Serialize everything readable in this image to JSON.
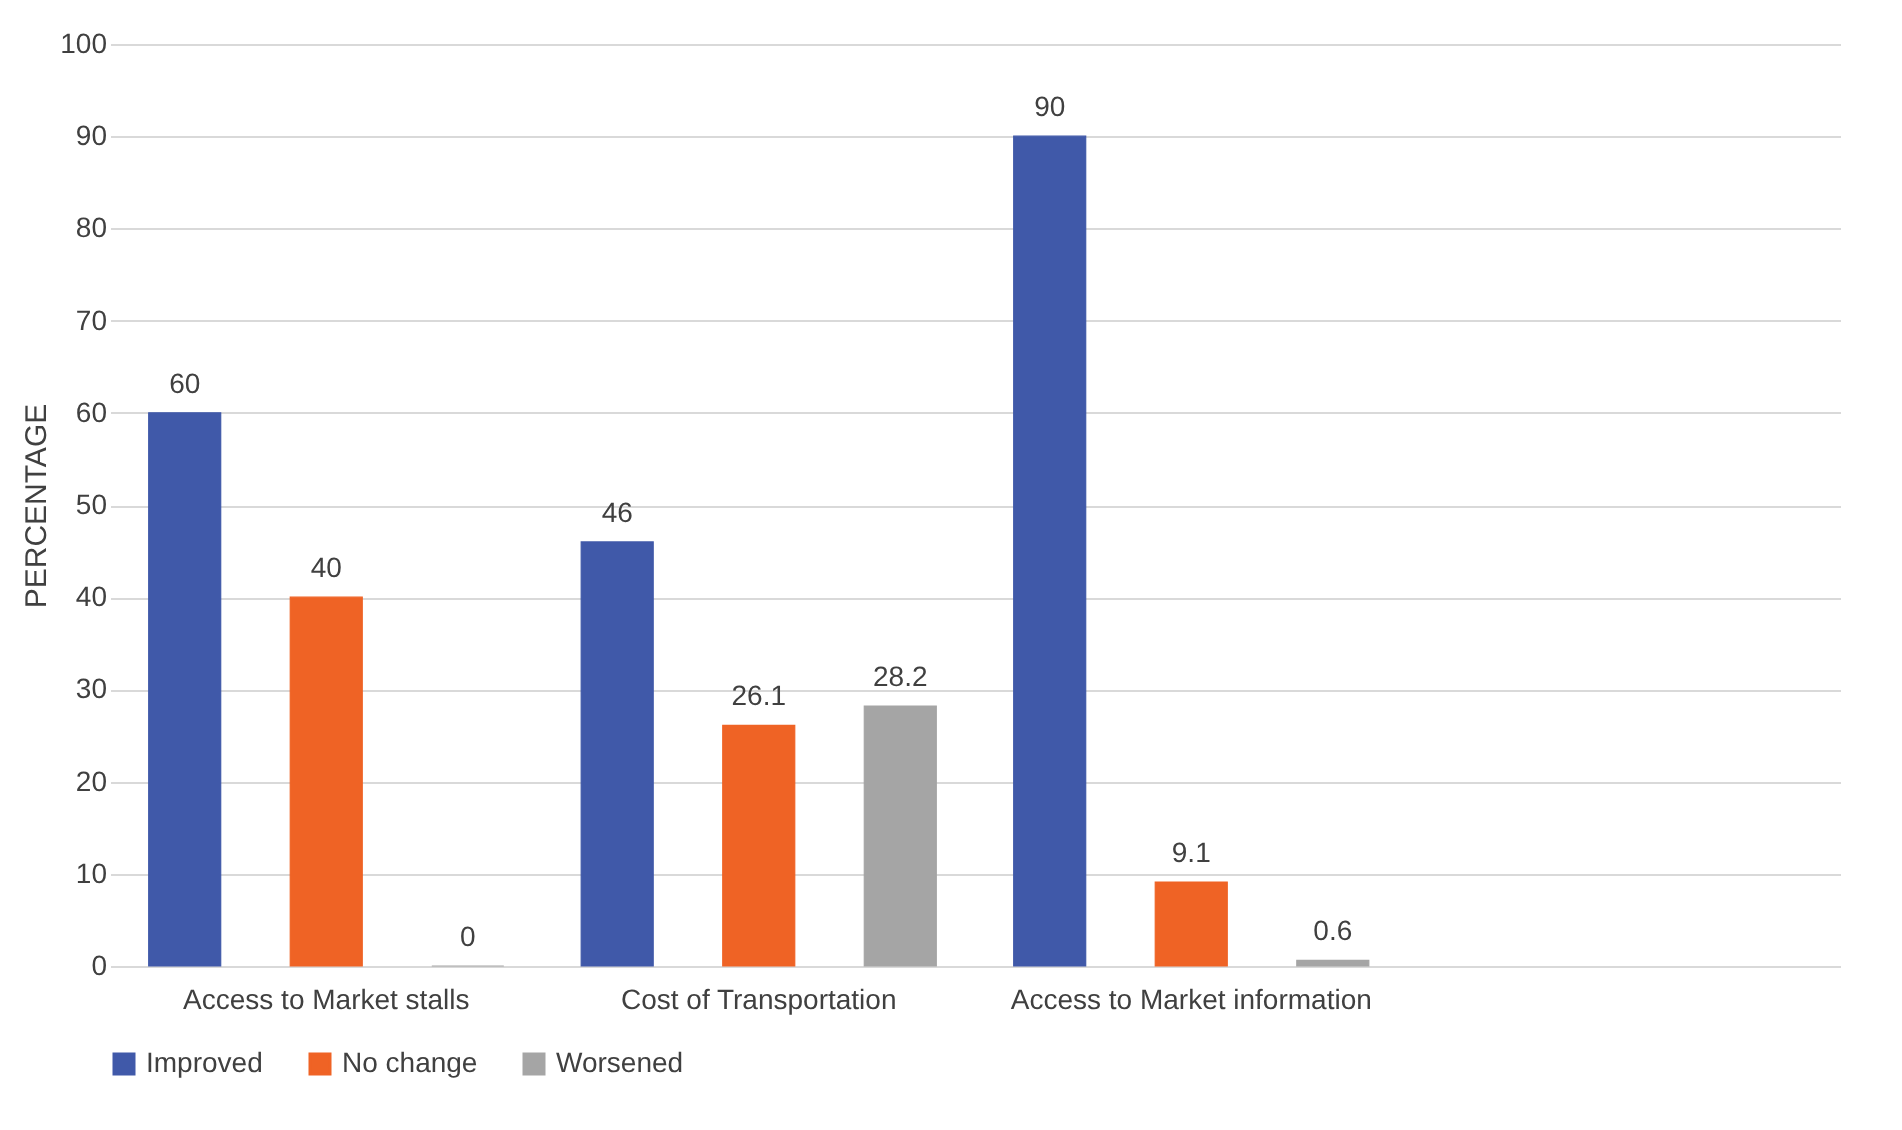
{
  "chart_data": {
    "type": "bar",
    "ylabel": "PERCENTAGE",
    "categories": [
      "Access to Market stalls",
      "Cost of Transportation",
      "Access to Market information",
      null
    ],
    "series": [
      {
        "name": "Improved",
        "color": "#4059a9",
        "values": [
          60,
          46,
          90,
          null
        ]
      },
      {
        "name": "No change",
        "color": "#ef6325",
        "values": [
          40,
          26.1,
          9.1,
          null
        ]
      },
      {
        "name": "Worsened",
        "color": "#a5a5a5",
        "values": [
          0,
          28.2,
          0.6,
          null
        ]
      }
    ],
    "ylim": [
      0,
      100
    ],
    "yticks": [
      0,
      10,
      20,
      30,
      40,
      50,
      60,
      70,
      80,
      90,
      100
    ],
    "grid": "y",
    "legend": "bottom",
    "data_labels": true
  }
}
